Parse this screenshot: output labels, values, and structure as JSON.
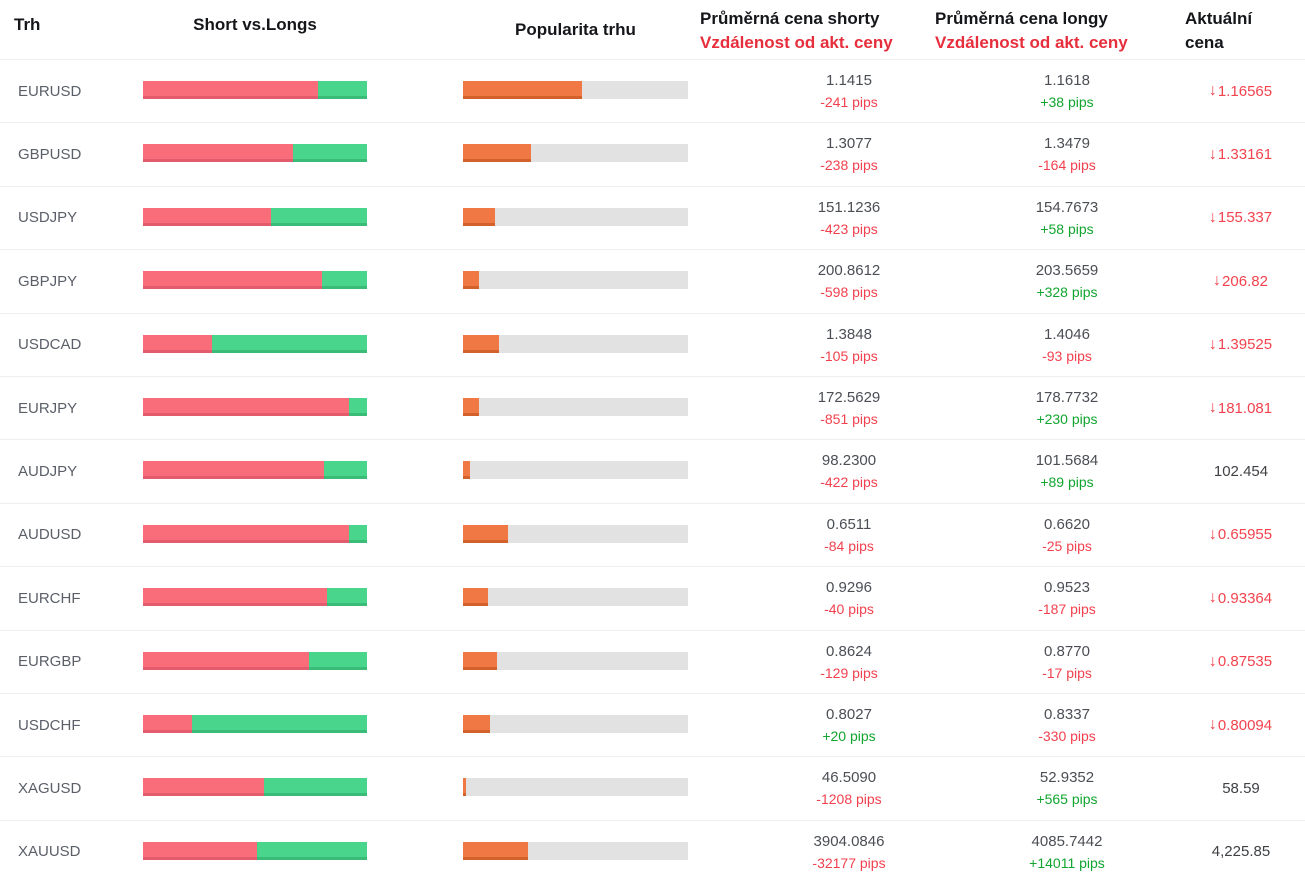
{
  "header": {
    "trh": "Trh",
    "short_vs_longs": "Short vs.Longs",
    "popularity": "Popularita trhu",
    "short_price_line1": "Průměrná cena shorty",
    "short_price_line2": "Vzdálenost od akt. ceny",
    "long_price_line1": "Průměrná cena longy",
    "long_price_line2": "Vzdálenost od akt. ceny",
    "current_line1": "Aktuální",
    "current_line2": "cena"
  },
  "icons": {
    "price_down_arrow": "↓"
  },
  "colors": {
    "short_bar": "#f96d7b",
    "long_bar": "#49d68c",
    "popularity_bar": "#ef7845",
    "popularity_track": "#e2e2e2",
    "negative_text": "#f2414e",
    "positive_text": "#12a52f",
    "price_down_text": "#f2434e",
    "header_red_text": "#e62e3c"
  },
  "rows": [
    {
      "symbol": "EURUSD",
      "shorts_pct": 78,
      "longs_pct": 22,
      "popularity_pct": 53,
      "short_price": "1.1415",
      "short_pips": "-241 pips",
      "long_price": "1.1618",
      "long_pips": "+38 pips",
      "current_price": "1.16565",
      "current_down": true
    },
    {
      "symbol": "GBPUSD",
      "shorts_pct": 67,
      "longs_pct": 33,
      "popularity_pct": 30,
      "short_price": "1.3077",
      "short_pips": "-238 pips",
      "long_price": "1.3479",
      "long_pips": "-164 pips",
      "current_price": "1.33161",
      "current_down": true
    },
    {
      "symbol": "USDJPY",
      "shorts_pct": 57,
      "longs_pct": 43,
      "popularity_pct": 14,
      "short_price": "151.1236",
      "short_pips": "-423 pips",
      "long_price": "154.7673",
      "long_pips": "+58 pips",
      "current_price": "155.337",
      "current_down": true
    },
    {
      "symbol": "GBPJPY",
      "shorts_pct": 80,
      "longs_pct": 20,
      "popularity_pct": 7,
      "short_price": "200.8612",
      "short_pips": "-598 pips",
      "long_price": "203.5659",
      "long_pips": "+328 pips",
      "current_price": "206.82",
      "current_down": true
    },
    {
      "symbol": "USDCAD",
      "shorts_pct": 31,
      "longs_pct": 69,
      "popularity_pct": 16,
      "short_price": "1.3848",
      "short_pips": "-105 pips",
      "long_price": "1.4046",
      "long_pips": "-93 pips",
      "current_price": "1.39525",
      "current_down": true
    },
    {
      "symbol": "EURJPY",
      "shorts_pct": 92,
      "longs_pct": 8,
      "popularity_pct": 7,
      "short_price": "172.5629",
      "short_pips": "-851 pips",
      "long_price": "178.7732",
      "long_pips": "+230 pips",
      "current_price": "181.081",
      "current_down": true
    },
    {
      "symbol": "AUDJPY",
      "shorts_pct": 81,
      "longs_pct": 19,
      "popularity_pct": 3,
      "short_price": "98.2300",
      "short_pips": "-422 pips",
      "long_price": "101.5684",
      "long_pips": "+89 pips",
      "current_price": "102.454",
      "current_down": false
    },
    {
      "symbol": "AUDUSD",
      "shorts_pct": 92,
      "longs_pct": 8,
      "popularity_pct": 20,
      "short_price": "0.6511",
      "short_pips": "-84 pips",
      "long_price": "0.6620",
      "long_pips": "-25 pips",
      "current_price": "0.65955",
      "current_down": true
    },
    {
      "symbol": "EURCHF",
      "shorts_pct": 82,
      "longs_pct": 18,
      "popularity_pct": 11,
      "short_price": "0.9296",
      "short_pips": "-40 pips",
      "long_price": "0.9523",
      "long_pips": "-187 pips",
      "current_price": "0.93364",
      "current_down": true
    },
    {
      "symbol": "EURGBP",
      "shorts_pct": 74,
      "longs_pct": 26,
      "popularity_pct": 15,
      "short_price": "0.8624",
      "short_pips": "-129 pips",
      "long_price": "0.8770",
      "long_pips": "-17 pips",
      "current_price": "0.87535",
      "current_down": true
    },
    {
      "symbol": "USDCHF",
      "shorts_pct": 22,
      "longs_pct": 78,
      "popularity_pct": 12,
      "short_price": "0.8027",
      "short_pips": "+20 pips",
      "long_price": "0.8337",
      "long_pips": "-330 pips",
      "current_price": "0.80094",
      "current_down": true
    },
    {
      "symbol": "XAGUSD",
      "shorts_pct": 54,
      "longs_pct": 46,
      "popularity_pct": 1.5,
      "short_price": "46.5090",
      "short_pips": "-1208 pips",
      "long_price": "52.9352",
      "long_pips": "+565 pips",
      "current_price": "58.59",
      "current_down": false
    },
    {
      "symbol": "XAUUSD",
      "shorts_pct": 51,
      "longs_pct": 49,
      "popularity_pct": 29,
      "short_price": "3904.0846",
      "short_pips": "-32177 pips",
      "long_price": "4085.7442",
      "long_pips": "+14011 pips",
      "current_price": "4,225.85",
      "current_down": false
    }
  ]
}
